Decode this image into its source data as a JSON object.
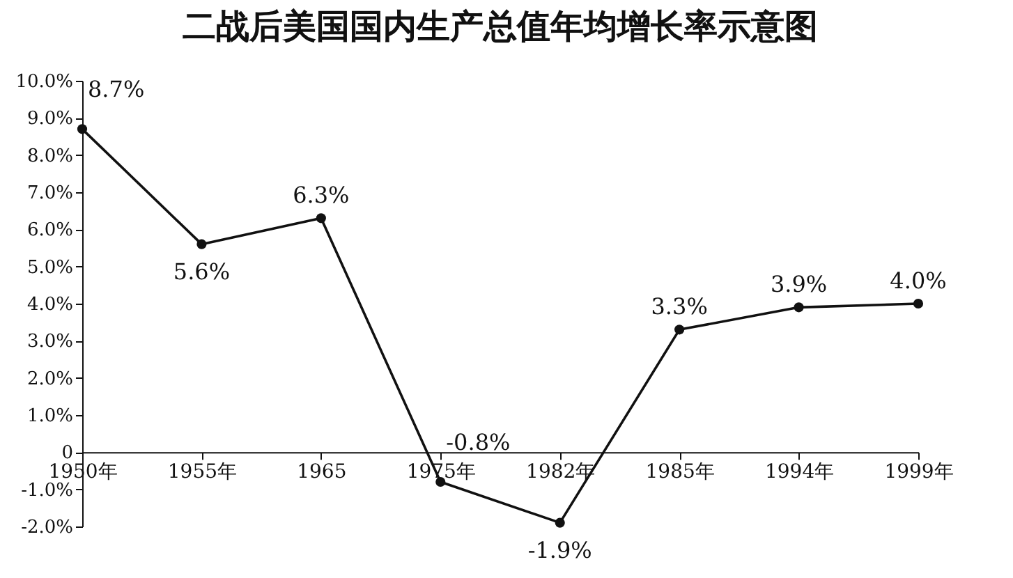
{
  "chart_data": {
    "type": "line",
    "title": "二战后美国国内生产总值年均增长率示意图",
    "categories": [
      "1950年",
      "1955年",
      "1965",
      "1975年",
      "1982年",
      "1985年",
      "1994年",
      "1999年"
    ],
    "series": [
      {
        "color": "#111111",
        "values": [
          8.7,
          5.6,
          6.3,
          -0.8,
          -1.9,
          3.3,
          3.9,
          4.0
        ],
        "value_labels": [
          "8.7%",
          "5.6%",
          "6.3%",
          "-0.8%",
          "-1.9%",
          "3.3%",
          "3.9%",
          "4.0%"
        ]
      }
    ],
    "ylim": [
      -2,
      10
    ],
    "yticks": [
      {
        "value": -2,
        "label": "-2.0%"
      },
      {
        "value": -1,
        "label": "-1.0%"
      },
      0,
      {
        "value": 1,
        "label": "1.0%"
      },
      {
        "value": 2,
        "label": "2.0%"
      },
      {
        "value": 3,
        "label": "3.0%"
      },
      {
        "value": 4,
        "label": "4.0%"
      },
      {
        "value": 5,
        "label": "5.0%"
      },
      {
        "value": 6,
        "label": "6.0%"
      },
      {
        "value": 7,
        "label": "7.0%"
      },
      {
        "value": 8,
        "label": "8.0%"
      },
      {
        "value": 9,
        "label": "9.0%"
      },
      {
        "value": 10,
        "label": "10.0%"
      }
    ],
    "marker": "circle",
    "line_style": "solid",
    "grid": false
  }
}
